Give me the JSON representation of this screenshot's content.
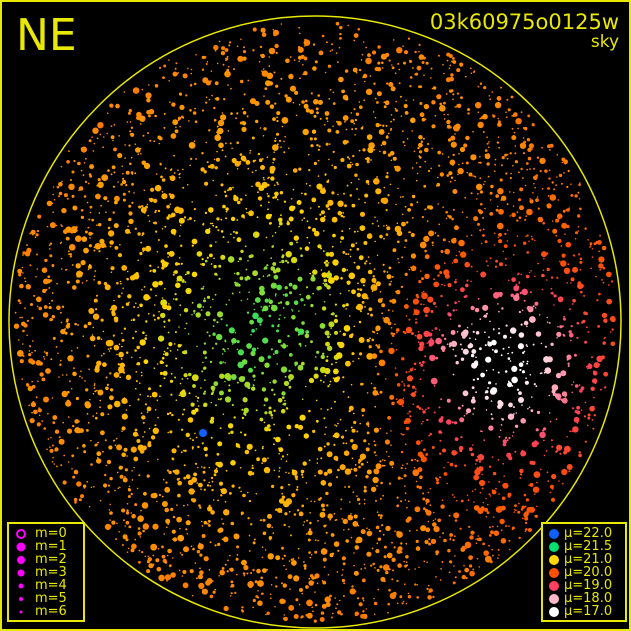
{
  "header": {
    "direction": "NE",
    "frame_id": "03k60975o0125w",
    "kind": "sky"
  },
  "colors": {
    "frame": "#e8e800",
    "background": "#000000",
    "magnitude_symbol": "#ff00ff"
  },
  "magnitude_legend": [
    {
      "label": "m=0",
      "style": "ring"
    },
    {
      "label": "m=1",
      "style": "dot"
    },
    {
      "label": "m=2",
      "style": "dot"
    },
    {
      "label": "m=3",
      "style": "dot"
    },
    {
      "label": "m=4",
      "style": "dot"
    },
    {
      "label": "m=5",
      "style": "dot"
    },
    {
      "label": "m=6",
      "style": "dot"
    }
  ],
  "mu_legend": [
    {
      "label": "μ=22.0",
      "color": "#1060ff"
    },
    {
      "label": "μ=21.5",
      "color": "#00e070"
    },
    {
      "label": "μ=21.0",
      "color": "#ffd800"
    },
    {
      "label": "μ=20.0",
      "color": "#ff5000"
    },
    {
      "label": "μ=19.0",
      "color": "#ff4060"
    },
    {
      "label": "μ=18.0",
      "color": "#ffb8c8"
    },
    {
      "label": "μ=17.0",
      "color": "#ffffff"
    }
  ]
}
